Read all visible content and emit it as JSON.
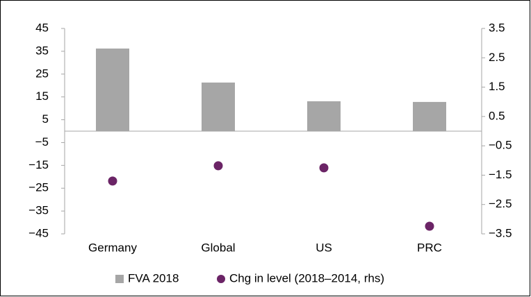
{
  "chart_data": {
    "type": "bar",
    "categories": [
      "Germany",
      "Global",
      "US",
      "PRC"
    ],
    "series": [
      {
        "name": "FVA 2018",
        "type": "bar",
        "color": "#a6a6a6",
        "values": [
          36.2,
          21.3,
          13.1,
          12.8
        ]
      },
      {
        "name": "Chg in level (2018–2014, rhs)",
        "type": "scatter",
        "axis": "y2",
        "color": "#6b2466",
        "values": [
          -1.7,
          -1.18,
          -1.25,
          -3.24
        ]
      }
    ],
    "ylim": [
      -45,
      45
    ],
    "yticks": [
      {
        "value": -45,
        "label": "−45"
      },
      {
        "value": -35,
        "label": "−35"
      },
      {
        "value": -25,
        "label": "−25"
      },
      {
        "value": -15,
        "label": "−15"
      },
      {
        "value": -5,
        "label": "−5"
      },
      5,
      15,
      25,
      35,
      45
    ],
    "y2lim": [
      -3.5,
      3.5
    ],
    "y2ticks": [
      {
        "value": -3.5,
        "label": "−3.5"
      },
      {
        "value": -2.5,
        "label": "−2.5"
      },
      {
        "value": -1.5,
        "label": "−1.5"
      },
      {
        "value": -0.5,
        "label": "−0.5"
      },
      0.5,
      1.5,
      2.5,
      3.5
    ],
    "legend": "bottom"
  }
}
